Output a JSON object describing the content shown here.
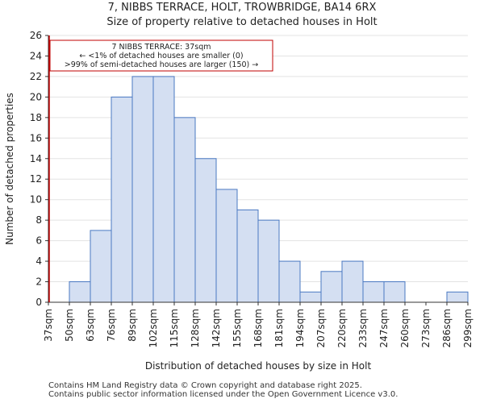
{
  "chart_data": {
    "type": "bar",
    "title": "7, NIBBS TERRACE, HOLT, TROWBRIDGE, BA14 6RX",
    "subtitle": "Size of property relative to detached houses in Holt",
    "xlabel": "Distribution of detached houses by size in Holt",
    "ylabel": "Number of detached properties",
    "bin_edges": [
      "37sqm",
      "50sqm",
      "63sqm",
      "76sqm",
      "89sqm",
      "102sqm",
      "115sqm",
      "128sqm",
      "142sqm",
      "155sqm",
      "168sqm",
      "181sqm",
      "194sqm",
      "207sqm",
      "220sqm",
      "233sqm",
      "247sqm",
      "260sqm",
      "273sqm",
      "286sqm",
      "299sqm"
    ],
    "values": [
      0,
      2,
      7,
      20,
      22,
      22,
      18,
      14,
      11,
      9,
      8,
      4,
      1,
      3,
      4,
      2,
      2,
      0,
      0,
      1
    ],
    "ylim": [
      0,
      26
    ],
    "yticks": [
      0,
      2,
      4,
      6,
      8,
      10,
      12,
      14,
      16,
      18,
      20,
      22,
      24,
      26
    ],
    "bar_color": "#d4dff2",
    "bar_edge_color": "#4a78c2",
    "marker_color": "#c00000",
    "annotation": {
      "lines": [
        "7 NIBBS TERRACE: 37sqm",
        "← <1% of detached houses are smaller (0)",
        ">99% of semi-detached houses are larger (150) →"
      ]
    }
  },
  "footer": {
    "line1": "Contains HM Land Registry data © Crown copyright and database right 2025.",
    "line2": "Contains public sector information licensed under the Open Government Licence v3.0."
  }
}
